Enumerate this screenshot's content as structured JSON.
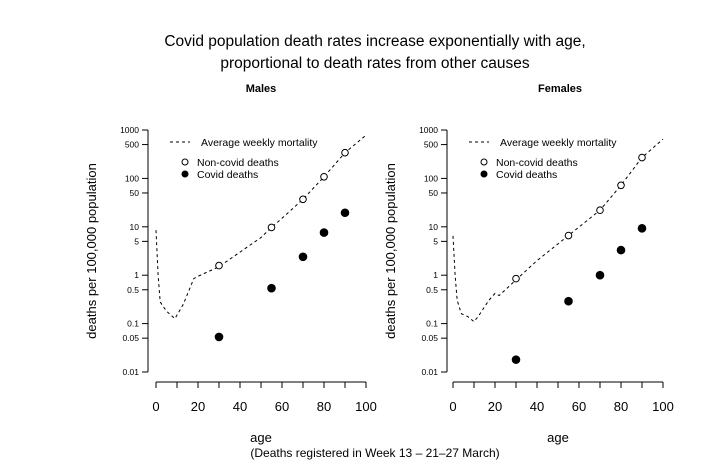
{
  "title_lines": [
    "Covid population death rates increase exponentially with age,",
    "proportional to death rates from other causes"
  ],
  "footnote": "(Deaths registered in Week 13 – 21–27 March)",
  "chart_data": [
    {
      "type": "scatter",
      "title": "Males",
      "xlabel": "age",
      "ylabel": "deaths per 100,000 population",
      "xlim": [
        0,
        100
      ],
      "ylim": [
        0.01,
        1000
      ],
      "y_scale": "log",
      "x_ticks": [
        "0",
        "20",
        "40",
        "60",
        "80",
        "100"
      ],
      "y_ticks": [
        "0.01",
        "0.05",
        "0.1",
        "0.5",
        "1",
        "5",
        "10",
        "50",
        "100",
        "500",
        "1000"
      ],
      "legend_position": "top-left",
      "series": [
        {
          "name": "Average weekly mortality",
          "style": "dashed-line",
          "x": [
            0,
            1,
            2,
            5,
            9,
            13,
            18,
            20,
            30,
            40,
            50,
            55,
            60,
            70,
            80,
            90,
            100
          ],
          "y": [
            8.5,
            1.0,
            0.28,
            0.18,
            0.126,
            0.25,
            0.85,
            0.95,
            1.5,
            3,
            6,
            9.7,
            15,
            37,
            108,
            340,
            780
          ]
        },
        {
          "name": "Non-covid deaths",
          "style": "open-circle",
          "x": [
            30,
            55,
            70,
            80,
            90
          ],
          "y": [
            1.58,
            9.7,
            37,
            108,
            340
          ]
        },
        {
          "name": "Covid deaths",
          "style": "filled-circle",
          "x": [
            30,
            55,
            70,
            80,
            90
          ],
          "y": [
            0.053,
            0.54,
            2.4,
            7.6,
            19.5
          ]
        }
      ]
    },
    {
      "type": "scatter",
      "title": "Females",
      "xlabel": "age",
      "ylabel": "deaths per 100,000 population",
      "xlim": [
        0,
        100
      ],
      "ylim": [
        0.01,
        1000
      ],
      "y_scale": "log",
      "x_ticks": [
        "0",
        "20",
        "40",
        "60",
        "80",
        "100"
      ],
      "y_ticks": [
        "0.01",
        "0.05",
        "0.1",
        "0.5",
        "1",
        "5",
        "10",
        "50",
        "100",
        "500",
        "1000"
      ],
      "legend_position": "top-left",
      "series": [
        {
          "name": "Average weekly mortality",
          "style": "dashed-line",
          "x": [
            0,
            1,
            2,
            4,
            7,
            10,
            12,
            17,
            20,
            22,
            30,
            40,
            55,
            70,
            80,
            90,
            100
          ],
          "y": [
            6.5,
            1.0,
            0.3,
            0.16,
            0.14,
            0.11,
            0.14,
            0.3,
            0.42,
            0.38,
            0.8,
            2.0,
            6.6,
            22,
            72,
            270,
            650
          ]
        },
        {
          "name": "Non-covid deaths",
          "style": "open-circle",
          "x": [
            30,
            55,
            70,
            80,
            90
          ],
          "y": [
            0.85,
            6.6,
            22,
            72,
            270
          ]
        },
        {
          "name": "Covid deaths",
          "style": "filled-circle",
          "x": [
            30,
            55,
            70,
            80,
            90
          ],
          "y": [
            0.018,
            0.29,
            1.0,
            3.3,
            9.3
          ]
        }
      ]
    }
  ]
}
